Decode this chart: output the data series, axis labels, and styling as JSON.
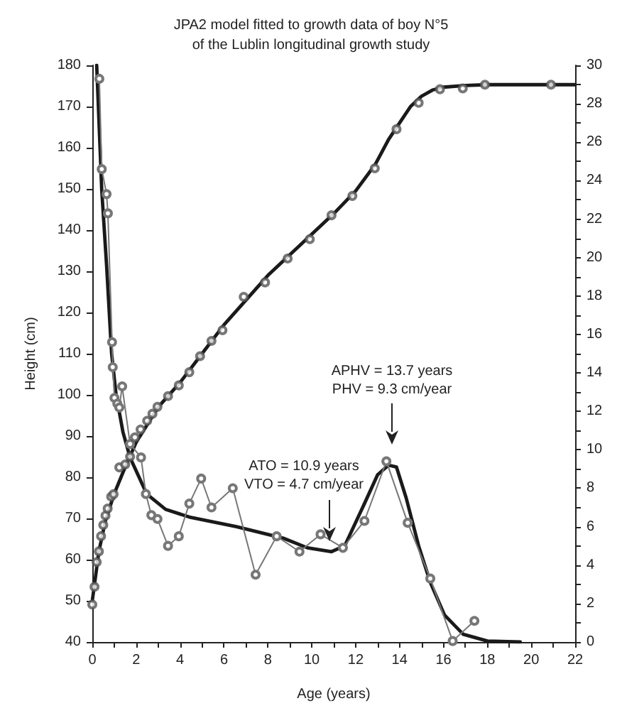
{
  "chart_data": {
    "type": "line",
    "title": "JPA2 model fitted to growth data of boy N°5\nof the Lublin longitudinal growth study",
    "xlabel": "Age (years)",
    "ylabel": "Height (cm)",
    "xlim": [
      0,
      22
    ],
    "xticks": [
      0,
      {
        "value": 1,
        "label": null
      },
      2,
      {
        "value": 3,
        "label": null
      },
      4,
      {
        "value": 5,
        "label": null
      },
      6,
      {
        "value": 7,
        "label": null
      },
      8,
      {
        "value": 9,
        "label": null
      },
      10,
      {
        "value": 11,
        "label": null
      },
      12,
      {
        "value": 13,
        "label": null
      },
      14,
      {
        "value": 15,
        "label": null
      },
      16,
      {
        "value": 17,
        "label": null
      },
      18,
      {
        "value": 19,
        "label": null
      },
      20,
      {
        "value": 21,
        "label": null
      },
      22
    ],
    "ylim": [
      40,
      180
    ],
    "yticks": [
      40,
      50,
      60,
      70,
      80,
      90,
      100,
      110,
      120,
      130,
      140,
      150,
      160,
      170,
      180
    ],
    "y2lim": [
      0,
      30
    ],
    "y2ticks": [
      0,
      {
        "value": 1,
        "label": null
      },
      2,
      {
        "value": 3,
        "label": null
      },
      4,
      {
        "value": 5,
        "label": null
      },
      6,
      {
        "value": 7,
        "label": null
      },
      8,
      {
        "value": 9,
        "label": null
      },
      10,
      {
        "value": 11,
        "label": null
      },
      12,
      {
        "value": 13,
        "label": null
      },
      14,
      {
        "value": 15,
        "label": null
      },
      16,
      {
        "value": 17,
        "label": null
      },
      18,
      {
        "value": 19,
        "label": null
      },
      20,
      {
        "value": 21,
        "label": null
      },
      22,
      {
        "value": 23,
        "label": null
      },
      24,
      {
        "value": 25,
        "label": null
      },
      26,
      {
        "value": 27,
        "label": null
      },
      28,
      {
        "value": 29,
        "label": null
      },
      30
    ],
    "grid": false,
    "series": [
      {
        "marker": "none",
        "line_style": "solid",
        "color": "#1a1a1a",
        "x": [
          0,
          0.3,
          0.6,
          1,
          1.5,
          2,
          3,
          4,
          5,
          6,
          7,
          8,
          9,
          10,
          11,
          12,
          12.9,
          13.5,
          14,
          14.5,
          15,
          15.5,
          16,
          17,
          18,
          22
        ],
        "values": [
          50,
          62,
          69.5,
          76,
          82.5,
          88.5,
          97,
          103,
          110,
          117,
          123,
          129,
          134,
          139,
          144,
          149.5,
          156,
          162,
          166,
          170,
          172.5,
          174,
          174.7,
          175.1,
          175.3,
          175.3
        ]
      },
      {
        "type": "scatter",
        "marker": "circle",
        "color": "#555555",
        "x": [
          0,
          0.1,
          0.2,
          0.3,
          0.4,
          0.5,
          0.6,
          0.7,
          0.86,
          0.97,
          1.23,
          1.5,
          1.72,
          1.94,
          2.2,
          2.5,
          2.74,
          2.97,
          3.45,
          3.94,
          4.42,
          4.91,
          5.43,
          5.93,
          6.9,
          7.87,
          8.9,
          9.91,
          10.9,
          11.85,
          12.87,
          13.86,
          14.87,
          15.84,
          16.88,
          17.89,
          20.9
        ],
        "values": [
          49.1,
          53.4,
          59.4,
          62,
          65.7,
          68.4,
          70.7,
          72.4,
          75.3,
          75.9,
          82.4,
          83.1,
          85,
          89.7,
          91.6,
          93.7,
          95.4,
          97.1,
          99.7,
          102.3,
          105.5,
          109.4,
          113.1,
          115.7,
          123.8,
          127.3,
          133.1,
          137.8,
          143.6,
          148.3,
          155,
          164.5,
          170.9,
          174.2,
          174.4,
          175.3,
          175.3
        ]
      },
      {
        "axis": "y2",
        "marker": "none",
        "line_style": "solid",
        "color": "#1a1a1a",
        "x": [
          0.2,
          0.43,
          0.65,
          0.88,
          1.08,
          1.4,
          1.72,
          2.48,
          3.34,
          4.42,
          6.57,
          8.7,
          9.8,
          10.9,
          11.5,
          12.4,
          13,
          13.5,
          13.86,
          14.3,
          14.87,
          15.4,
          16.05,
          16.9,
          18,
          19.5
        ],
        "values": [
          30,
          23.5,
          19.6,
          15,
          12.9,
          10.9,
          9.6,
          7.7,
          6.9,
          6.5,
          6,
          5.4,
          4.9,
          4.7,
          5,
          7.2,
          8.7,
          9.2,
          9.1,
          7.5,
          5,
          3.1,
          1.4,
          0.4,
          0.05,
          0
        ]
      },
      {
        "axis": "y2",
        "marker": "circle",
        "line_style": "solid",
        "color": "#777777",
        "x": [
          0.32,
          0.43,
          0.65,
          0.71,
          0.9,
          0.93,
          1.01,
          1.14,
          1.23,
          1.36,
          1.72,
          2.22,
          2.44,
          2.69,
          2.97,
          3.45,
          3.94,
          4.42,
          4.96,
          5.43,
          6.4,
          7.44,
          8.4,
          9.44,
          10.4,
          11.42,
          12.4,
          13.4,
          14.37,
          15.4,
          16.42,
          17.41
        ],
        "values": [
          29.3,
          24.6,
          23.3,
          22.3,
          15.6,
          14.3,
          12.7,
          12.4,
          12.2,
          13.3,
          10.3,
          9.6,
          7.7,
          6.6,
          6.4,
          5,
          5.5,
          7.2,
          8.5,
          7,
          8,
          3.5,
          5.5,
          4.7,
          5.6,
          4.9,
          6.3,
          9.4,
          6.2,
          3.3,
          0.05,
          1.1
        ]
      }
    ],
    "annotations": [
      "APHV = 13.7 years\nPHV = 9.3 cm/year",
      "ATO = 10.9 years\nVTO = 4.7 cm/year"
    ]
  }
}
